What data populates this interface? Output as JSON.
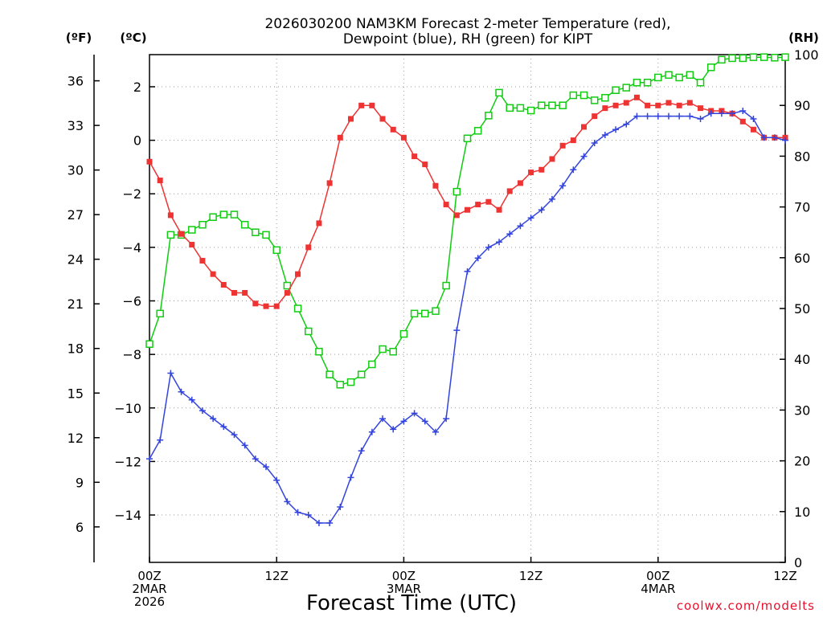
{
  "chart_data": {
    "type": "line",
    "title_line1": "2026030200 NAM3KM Forecast 2-meter Temperature (red),",
    "title_line2": "Dewpoint (blue), RH (green) for KIPT",
    "xlabel": "Forecast Time (UTC)",
    "credit": "coolwx.com/modelts",
    "x_range_hours": [
      0,
      60
    ],
    "x_ticks": [
      {
        "hour": 0,
        "lines": [
          "00Z",
          "2MAR",
          "2026"
        ]
      },
      {
        "hour": 12,
        "lines": [
          "12Z"
        ]
      },
      {
        "hour": 24,
        "lines": [
          "00Z",
          "3MAR"
        ]
      },
      {
        "hour": 36,
        "lines": [
          "12Z"
        ]
      },
      {
        "hour": 48,
        "lines": [
          "00Z",
          "4MAR"
        ]
      },
      {
        "hour": 60,
        "lines": [
          "12Z"
        ]
      }
    ],
    "y_celsius": {
      "unit_label": "(ºC)",
      "range": [
        -15.77,
        3.2
      ],
      "ticks": [
        2,
        0,
        -2,
        -4,
        -6,
        -8,
        -10,
        -12,
        -14
      ],
      "tick_labels": [
        "2",
        "0",
        "−2",
        "−4",
        "−6",
        "−8",
        "−10",
        "−12",
        "−14"
      ]
    },
    "y_fahrenheit": {
      "unit_label": "(ºF)",
      "ticks": [
        36,
        33,
        30,
        27,
        24,
        21,
        18,
        15,
        12,
        9,
        6
      ],
      "tick_labels": [
        "36",
        "33",
        "30",
        "27",
        "24",
        "21",
        "18",
        "15",
        "12",
        "9",
        "6"
      ]
    },
    "y_rh": {
      "unit_label": "(RH)",
      "range": [
        0,
        100
      ],
      "ticks": [
        100,
        90,
        80,
        70,
        60,
        50,
        40,
        30,
        20,
        10,
        0
      ],
      "tick_labels": [
        "100",
        "90",
        "80",
        "70",
        "60",
        "50",
        "40",
        "30",
        "20",
        "10",
        "0"
      ]
    },
    "series": [
      {
        "name": "2-meter Temperature",
        "axis": "celsius",
        "color": "#ee3333",
        "marker": "filled-square",
        "x": [
          0,
          1,
          2,
          3,
          4,
          5,
          6,
          7,
          8,
          9,
          10,
          11,
          12,
          13,
          14,
          15,
          16,
          17,
          18,
          19,
          20,
          21,
          22,
          23,
          24,
          25,
          26,
          27,
          28,
          29,
          30,
          31,
          32,
          33,
          34,
          35,
          36,
          37,
          38,
          39,
          40,
          41,
          42,
          43,
          44,
          45,
          46,
          47,
          48,
          49,
          50,
          51,
          52,
          53,
          54,
          55,
          56,
          57,
          58,
          59,
          60
        ],
        "values": [
          -0.8,
          -1.5,
          -2.8,
          -3.5,
          -3.9,
          -4.5,
          -5.0,
          -5.4,
          -5.7,
          -5.7,
          -6.1,
          -6.2,
          -6.2,
          -5.7,
          -5.0,
          -4.0,
          -3.1,
          -1.6,
          0.1,
          0.8,
          1.3,
          1.3,
          0.8,
          0.4,
          0.1,
          -0.6,
          -0.9,
          -1.7,
          -2.4,
          -2.8,
          -2.6,
          -2.4,
          -2.3,
          -2.6,
          -1.9,
          -1.6,
          -1.2,
          -1.1,
          -0.7,
          -0.2,
          0,
          0.5,
          0.9,
          1.2,
          1.3,
          1.4,
          1.6,
          1.3,
          1.3,
          1.4,
          1.3,
          1.4,
          1.2,
          1.1,
          1.1,
          1.0,
          0.7,
          0.4,
          0.1,
          0.1,
          0.1
        ]
      },
      {
        "name": "Dewpoint",
        "axis": "celsius",
        "color": "#3344dd",
        "marker": "plus",
        "x": [
          0,
          1,
          2,
          3,
          4,
          5,
          6,
          7,
          8,
          9,
          10,
          11,
          12,
          13,
          14,
          15,
          16,
          17,
          18,
          19,
          20,
          21,
          22,
          23,
          24,
          25,
          26,
          27,
          28,
          29,
          30,
          31,
          32,
          33,
          34,
          35,
          36,
          37,
          38,
          39,
          40,
          41,
          42,
          43,
          44,
          45,
          46,
          47,
          48,
          49,
          50,
          51,
          52,
          53,
          54,
          55,
          56,
          57,
          58,
          59,
          60
        ],
        "values": [
          -11.9,
          -11.2,
          -8.7,
          -9.4,
          -9.7,
          -10.1,
          -10.4,
          -10.7,
          -11.0,
          -11.4,
          -11.9,
          -12.2,
          -12.7,
          -13.5,
          -13.9,
          -14.0,
          -14.3,
          -14.3,
          -13.7,
          -12.6,
          -11.6,
          -10.9,
          -10.4,
          -10.8,
          -10.5,
          -10.2,
          -10.5,
          -10.9,
          -10.4,
          -7.1,
          -4.9,
          -4.4,
          -4.0,
          -3.8,
          -3.5,
          -3.2,
          -2.9,
          -2.6,
          -2.2,
          -1.7,
          -1.1,
          -0.6,
          -0.1,
          0.2,
          0.4,
          0.6,
          0.9,
          0.9,
          0.9,
          0.9,
          0.9,
          0.9,
          0.8,
          1.0,
          1.0,
          1.0,
          1.1,
          0.8,
          0.1,
          0.1,
          0
        ]
      },
      {
        "name": "RH",
        "axis": "rh",
        "color": "#11cc11",
        "marker": "open-square",
        "x": [
          0,
          1,
          2,
          3,
          4,
          5,
          6,
          7,
          8,
          9,
          10,
          11,
          12,
          13,
          14,
          15,
          16,
          17,
          18,
          19,
          20,
          21,
          22,
          23,
          24,
          25,
          26,
          27,
          28,
          29,
          30,
          31,
          32,
          33,
          34,
          35,
          36,
          37,
          38,
          39,
          40,
          41,
          42,
          43,
          44,
          45,
          46,
          47,
          48,
          49,
          50,
          51,
          52,
          53,
          54,
          55,
          56,
          57,
          58,
          59,
          60
        ],
        "values": [
          43,
          49,
          64.5,
          64.5,
          65.5,
          66.5,
          68,
          68.5,
          68.5,
          66.5,
          65,
          64.5,
          61.5,
          54.5,
          50,
          45.5,
          41.5,
          37,
          35,
          35.5,
          37,
          39,
          42,
          41.5,
          45,
          49,
          49,
          49.5,
          54.5,
          73,
          83.5,
          85,
          88,
          92.5,
          89.5,
          89.5,
          89,
          90,
          90,
          90,
          92,
          92,
          91,
          91.5,
          93,
          93.5,
          94.5,
          94.5,
          95.5,
          96,
          95.5,
          96,
          94.5,
          97.5,
          99,
          99.3,
          99.3,
          99.5,
          99.5,
          99.4,
          99.5
        ]
      }
    ]
  }
}
